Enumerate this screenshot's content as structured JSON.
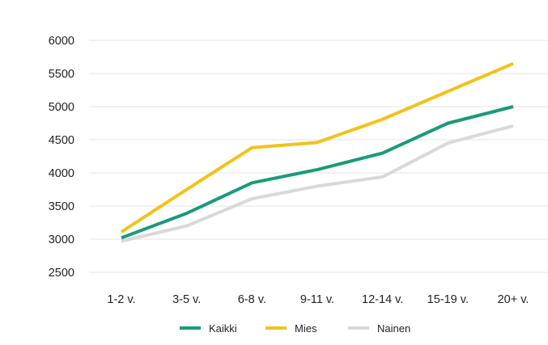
{
  "chart_data": {
    "type": "line",
    "title": "",
    "xlabel": "",
    "ylabel": "",
    "categories": [
      "1-2 v.",
      "3-5 v.",
      "6-8 v.",
      "9-11 v.",
      "12-14 v.",
      "15-19 v.",
      "20+ v."
    ],
    "series": [
      {
        "name": "Kaikki",
        "color": "#1a9a7c",
        "values": [
          3020,
          3390,
          3850,
          4050,
          4300,
          4750,
          5000
        ]
      },
      {
        "name": "Mies",
        "color": "#f2c21a",
        "values": [
          3110,
          3750,
          4380,
          4460,
          4810,
          5230,
          5650
        ]
      },
      {
        "name": "Nainen",
        "color": "#d9d9d9",
        "values": [
          2970,
          3200,
          3610,
          3800,
          3940,
          4450,
          4710
        ]
      }
    ],
    "ylim": [
      2500,
      6000
    ],
    "yticks": [
      2500,
      3000,
      3500,
      4000,
      4500,
      5000,
      5500,
      6000
    ],
    "grid": true,
    "legend": "bottom-center"
  }
}
